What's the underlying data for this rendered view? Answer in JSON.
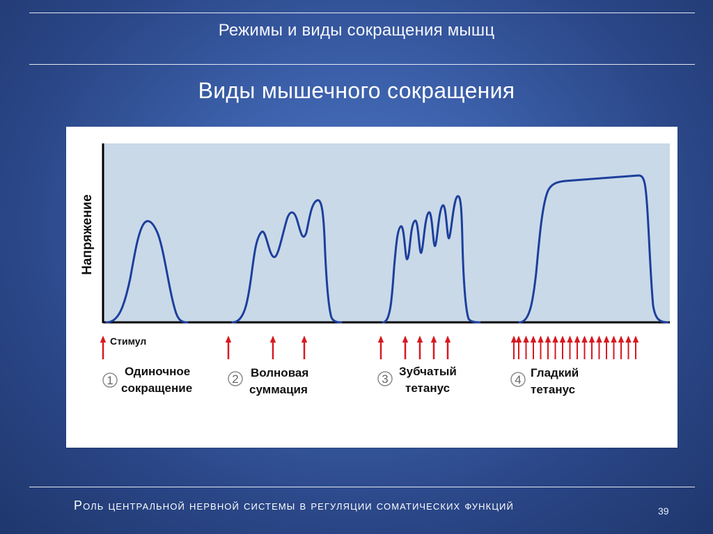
{
  "slide": {
    "header": "Режимы и виды сокращения мышц",
    "title": "Виды мышечного сокращения",
    "footer": "Роль центральной нервной системы в регуляции соматических функций",
    "page_number": "39"
  },
  "figure": {
    "y_axis_label": "Напряжение",
    "stimulus_label": "Стимул",
    "sections": [
      {
        "number": "1",
        "label_line1": "Одиночное",
        "label_line2": "сокращение"
      },
      {
        "number": "2",
        "label_line1": "Волновая",
        "label_line2": "суммация"
      },
      {
        "number": "3",
        "label_line1": "Зубчатый",
        "label_line2": "тетанус"
      },
      {
        "number": "4",
        "label_line1": "Гладкий",
        "label_line2": "тетанус"
      }
    ],
    "colors": {
      "plot_background": "#c9d9e8",
      "curve": "#1d3f9b",
      "arrow": "#d71920",
      "axis": "#000000",
      "label": "#111111"
    }
  }
}
